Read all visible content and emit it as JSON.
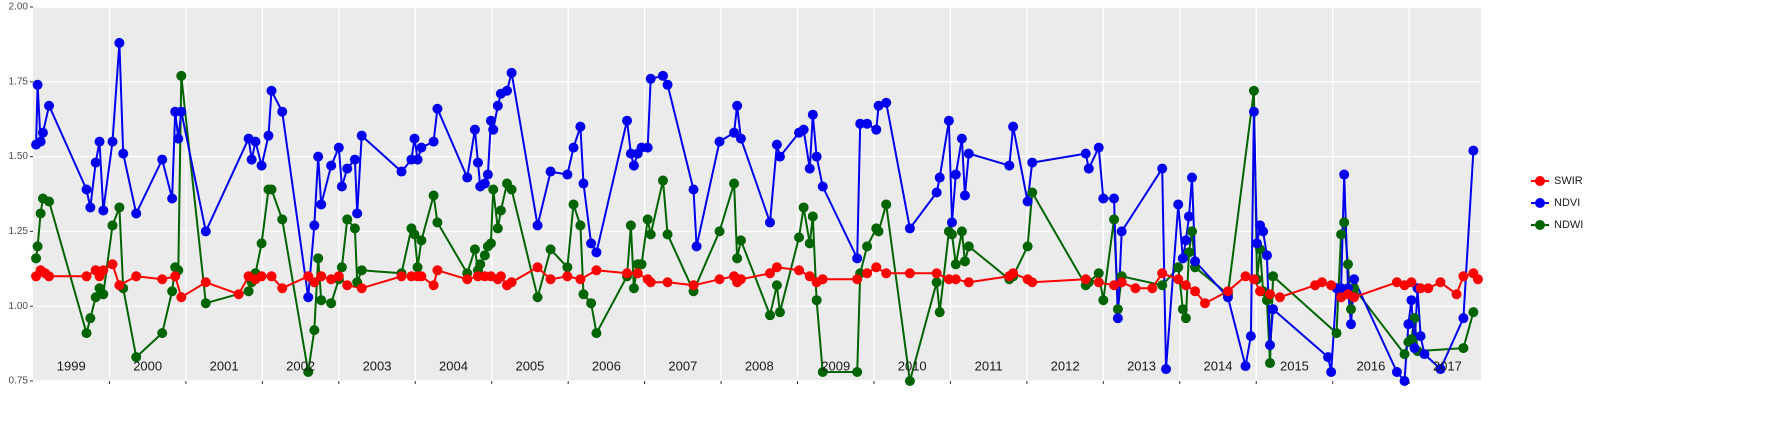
{
  "chart_data": {
    "type": "line",
    "xlim": [
      1999,
      2017.94
    ],
    "ylim": [
      0.75,
      2.0
    ],
    "yticks": [
      0.75,
      {
        "value": 1,
        "label": "1.00"
      },
      1.25,
      {
        "value": 1.5,
        "label": "1.50"
      },
      1.75,
      {
        "value": 2,
        "label": "2.00"
      }
    ],
    "xticks": [
      {
        "value": 1999.5,
        "label": "1999"
      },
      {
        "value": 2000.5,
        "label": "2000"
      },
      {
        "value": 2001.5,
        "label": "2001"
      },
      {
        "value": 2002.5,
        "label": "2002"
      },
      {
        "value": 2003.5,
        "label": "2003"
      },
      {
        "value": 2004.5,
        "label": "2004"
      },
      {
        "value": 2005.5,
        "label": "2005"
      },
      {
        "value": 2006.5,
        "label": "2006"
      },
      {
        "value": 2007.5,
        "label": "2007"
      },
      {
        "value": 2008.5,
        "label": "2008"
      },
      {
        "value": 2009.5,
        "label": "2009"
      },
      {
        "value": 2010.5,
        "label": "2010"
      },
      {
        "value": 2011.5,
        "label": "2011"
      },
      {
        "value": 2012.5,
        "label": "2012"
      },
      {
        "value": 2013.5,
        "label": "2013"
      },
      {
        "value": 2014.5,
        "label": "2014"
      },
      {
        "value": 2015.5,
        "label": "2015"
      },
      {
        "value": 2016.5,
        "label": "2016"
      },
      {
        "value": 2017.5,
        "label": "2017"
      }
    ],
    "xgrid": [
      2000,
      2001,
      2002,
      2003,
      2004,
      2005,
      2006,
      2007,
      2008,
      2009,
      2010,
      2011,
      2012,
      2013,
      2014,
      2015,
      2016,
      2017
    ],
    "grid": true,
    "legend": "right",
    "series": [
      {
        "name": "SWIR",
        "color": "#ff0000",
        "x": [
          1999.04,
          1999.1,
          1999.16,
          1999.21,
          1999.7,
          1999.82,
          1999.87,
          1999.92,
          2000.04,
          2000.13,
          2000.35,
          2000.69,
          2000.86,
          2000.94,
          2001.26,
          2001.69,
          2001.82,
          2001.91,
          2001.99,
          2002.12,
          2002.26,
          2002.6,
          2002.68,
          2002.77,
          2002.9,
          2003.0,
          2003.11,
          2003.3,
          2003.82,
          2003.95,
          2004.03,
          2004.08,
          2004.24,
          2004.29,
          2004.68,
          2004.82,
          2004.91,
          2004.99,
          2005.08,
          2005.12,
          2005.2,
          2005.26,
          2005.6,
          2005.77,
          2005.99,
          2006.16,
          2006.37,
          2006.77,
          2006.91,
          2007.04,
          2007.08,
          2007.3,
          2007.64,
          2007.98,
          2008.17,
          2008.21,
          2008.26,
          2008.64,
          2008.73,
          2009.02,
          2009.16,
          2009.25,
          2009.33,
          2009.78,
          2009.91,
          2010.03,
          2010.16,
          2010.47,
          2010.82,
          2010.98,
          2011.07,
          2011.24,
          2011.77,
          2011.82,
          2012.01,
          2012.07,
          2012.77,
          2012.94,
          2013.14,
          2013.24,
          2013.42,
          2013.64,
          2013.77,
          2013.98,
          2014.08,
          2014.2,
          2014.33,
          2014.63,
          2014.86,
          2014.97,
          2015.05,
          2015.18,
          2015.31,
          2015.77,
          2015.86,
          2015.98,
          2016.11,
          2016.2,
          2016.28,
          2016.84,
          2016.94,
          2017.03,
          2017.15,
          2017.25,
          2017.41,
          2017.62,
          2017.71,
          2017.84,
          2017.9
        ],
        "values": [
          1.1,
          1.12,
          1.11,
          1.1,
          1.1,
          1.12,
          1.1,
          1.12,
          1.14,
          1.07,
          1.1,
          1.09,
          1.1,
          1.03,
          1.08,
          1.04,
          1.1,
          1.09,
          1.1,
          1.1,
          1.06,
          1.1,
          1.08,
          1.1,
          1.09,
          1.1,
          1.07,
          1.06,
          1.1,
          1.1,
          1.1,
          1.1,
          1.07,
          1.12,
          1.09,
          1.1,
          1.1,
          1.1,
          1.09,
          1.1,
          1.07,
          1.08,
          1.13,
          1.09,
          1.1,
          1.09,
          1.12,
          1.11,
          1.11,
          1.09,
          1.08,
          1.08,
          1.07,
          1.09,
          1.1,
          1.08,
          1.09,
          1.11,
          1.13,
          1.12,
          1.1,
          1.08,
          1.09,
          1.09,
          1.11,
          1.13,
          1.11,
          1.11,
          1.11,
          1.09,
          1.09,
          1.08,
          1.1,
          1.11,
          1.09,
          1.08,
          1.09,
          1.08,
          1.07,
          1.08,
          1.06,
          1.06,
          1.11,
          1.09,
          1.07,
          1.05,
          1.01,
          1.05,
          1.1,
          1.09,
          1.05,
          1.04,
          1.03,
          1.07,
          1.08,
          1.07,
          1.03,
          1.04,
          1.03,
          1.08,
          1.07,
          1.08,
          1.06,
          1.06,
          1.08,
          1.04,
          1.1,
          1.11,
          1.09
        ]
      },
      {
        "name": "NDVI",
        "color": "#0000ee",
        "x": [
          1999.04,
          1999.06,
          1999.1,
          1999.13,
          1999.21,
          1999.7,
          1999.75,
          1999.82,
          1999.87,
          1999.92,
          2000.04,
          2000.13,
          2000.18,
          2000.35,
          2000.69,
          2000.82,
          2000.86,
          2000.9,
          2000.94,
          2001.26,
          2001.82,
          2001.86,
          2001.91,
          2001.99,
          2002.08,
          2002.12,
          2002.26,
          2002.6,
          2002.68,
          2002.73,
          2002.77,
          2002.9,
          2003.0,
          2003.04,
          2003.11,
          2003.21,
          2003.24,
          2003.3,
          2003.82,
          2003.95,
          2003.99,
          2004.03,
          2004.08,
          2004.24,
          2004.29,
          2004.68,
          2004.78,
          2004.82,
          2004.85,
          2004.91,
          2004.95,
          2004.99,
          2005.02,
          2005.08,
          2005.12,
          2005.2,
          2005.26,
          2005.6,
          2005.77,
          2005.99,
          2006.07,
          2006.16,
          2006.2,
          2006.3,
          2006.37,
          2006.77,
          2006.82,
          2006.86,
          2006.91,
          2006.96,
          2007.04,
          2007.08,
          2007.24,
          2007.3,
          2007.64,
          2007.68,
          2007.98,
          2008.17,
          2008.21,
          2008.26,
          2008.64,
          2008.73,
          2008.77,
          2009.02,
          2009.08,
          2009.16,
          2009.2,
          2009.25,
          2009.33,
          2009.78,
          2009.82,
          2009.91,
          2010.03,
          2010.06,
          2010.16,
          2010.47,
          2010.82,
          2010.86,
          2010.98,
          2011.02,
          2011.07,
          2011.15,
          2011.19,
          2011.24,
          2011.77,
          2011.82,
          2012.01,
          2012.07,
          2012.77,
          2012.81,
          2012.94,
          2013.0,
          2013.14,
          2013.19,
          2013.24,
          2013.77,
          2013.82,
          2013.98,
          2014.04,
          2014.08,
          2014.12,
          2014.16,
          2014.2,
          2014.63,
          2014.86,
          2014.93,
          2014.97,
          2015.01,
          2015.05,
          2015.09,
          2015.14,
          2015.18,
          2015.22,
          2015.94,
          2015.98,
          2016.05,
          2016.11,
          2016.15,
          2016.2,
          2016.24,
          2016.28,
          2016.84,
          2016.94,
          2016.99,
          2017.03,
          2017.07,
          2017.11,
          2017.15,
          2017.2,
          2017.41,
          2017.71,
          2017.84
        ],
        "values": [
          1.54,
          1.74,
          1.55,
          1.58,
          1.67,
          1.39,
          1.33,
          1.48,
          1.55,
          1.32,
          1.55,
          1.88,
          1.51,
          1.31,
          1.49,
          1.36,
          1.65,
          1.56,
          1.65,
          1.25,
          1.56,
          1.49,
          1.55,
          1.47,
          1.57,
          1.72,
          1.65,
          1.03,
          1.27,
          1.5,
          1.34,
          1.47,
          1.53,
          1.4,
          1.46,
          1.49,
          1.31,
          1.57,
          1.45,
          1.49,
          1.56,
          1.49,
          1.53,
          1.55,
          1.66,
          1.43,
          1.59,
          1.48,
          1.4,
          1.41,
          1.44,
          1.62,
          1.59,
          1.67,
          1.71,
          1.72,
          1.78,
          1.27,
          1.45,
          1.44,
          1.53,
          1.6,
          1.41,
          1.21,
          1.18,
          1.62,
          1.51,
          1.47,
          1.51,
          1.53,
          1.53,
          1.76,
          1.77,
          1.74,
          1.39,
          1.2,
          1.55,
          1.58,
          1.67,
          1.56,
          1.28,
          1.54,
          1.5,
          1.58,
          1.59,
          1.46,
          1.64,
          1.5,
          1.4,
          1.16,
          1.61,
          1.61,
          1.59,
          1.67,
          1.68,
          1.26,
          1.38,
          1.43,
          1.62,
          1.28,
          1.44,
          1.56,
          1.37,
          1.51,
          1.47,
          1.6,
          1.35,
          1.48,
          1.51,
          1.46,
          1.53,
          1.36,
          1.36,
          0.96,
          1.25,
          1.46,
          0.79,
          1.34,
          1.16,
          1.22,
          1.3,
          1.43,
          1.15,
          1.03,
          0.8,
          0.9,
          1.65,
          1.21,
          1.27,
          1.25,
          1.17,
          0.87,
          0.99,
          0.83,
          0.78,
          1.06,
          1.06,
          1.44,
          1.06,
          0.94,
          1.09,
          0.78,
          0.75,
          0.94,
          1.02,
          0.86,
          1.06,
          0.9,
          0.84,
          0.79,
          0.96,
          1.52
        ]
      },
      {
        "name": "NDWI",
        "color": "#006400",
        "x": [
          1999.04,
          1999.06,
          1999.1,
          1999.13,
          1999.21,
          1999.7,
          1999.75,
          1999.82,
          1999.87,
          1999.92,
          2000.04,
          2000.13,
          2000.18,
          2000.35,
          2000.69,
          2000.82,
          2000.86,
          2000.9,
          2000.94,
          2001.26,
          2001.82,
          2001.86,
          2001.91,
          2001.99,
          2002.08,
          2002.12,
          2002.26,
          2002.6,
          2002.68,
          2002.73,
          2002.77,
          2002.9,
          2003.0,
          2003.04,
          2003.11,
          2003.21,
          2003.24,
          2003.3,
          2003.82,
          2003.95,
          2003.99,
          2004.03,
          2004.08,
          2004.24,
          2004.29,
          2004.68,
          2004.78,
          2004.82,
          2004.85,
          2004.91,
          2004.95,
          2004.99,
          2005.02,
          2005.08,
          2005.12,
          2005.2,
          2005.26,
          2005.6,
          2005.77,
          2005.99,
          2006.07,
          2006.16,
          2006.2,
          2006.3,
          2006.37,
          2006.77,
          2006.82,
          2006.86,
          2006.91,
          2006.96,
          2007.04,
          2007.08,
          2007.24,
          2007.3,
          2007.64,
          2007.98,
          2008.17,
          2008.21,
          2008.26,
          2008.64,
          2008.73,
          2008.77,
          2009.02,
          2009.08,
          2009.16,
          2009.2,
          2009.25,
          2009.33,
          2009.78,
          2009.82,
          2009.91,
          2010.03,
          2010.06,
          2010.16,
          2010.47,
          2010.82,
          2010.86,
          2010.98,
          2011.02,
          2011.07,
          2011.15,
          2011.19,
          2011.24,
          2011.77,
          2011.82,
          2012.01,
          2012.07,
          2012.77,
          2012.81,
          2012.94,
          2013.0,
          2013.14,
          2013.19,
          2013.24,
          2013.77,
          2013.98,
          2014.04,
          2014.08,
          2014.12,
          2014.16,
          2014.2,
          2014.63,
          2014.97,
          2015.01,
          2015.05,
          2015.09,
          2015.14,
          2015.18,
          2015.22,
          2016.05,
          2016.11,
          2016.15,
          2016.2,
          2016.24,
          2016.28,
          2016.94,
          2016.99,
          2017.03,
          2017.07,
          2017.11,
          2017.71,
          2017.84
        ],
        "values": [
          1.16,
          1.2,
          1.31,
          1.36,
          1.35,
          0.91,
          0.96,
          1.03,
          1.06,
          1.04,
          1.27,
          1.33,
          1.06,
          0.83,
          0.91,
          1.05,
          1.13,
          1.12,
          1.77,
          1.01,
          1.05,
          1.08,
          1.11,
          1.21,
          1.39,
          1.39,
          1.29,
          0.78,
          0.92,
          1.16,
          1.02,
          1.01,
          1.09,
          1.13,
          1.29,
          1.26,
          1.08,
          1.12,
          1.11,
          1.26,
          1.24,
          1.13,
          1.22,
          1.37,
          1.28,
          1.11,
          1.19,
          1.12,
          1.14,
          1.17,
          1.2,
          1.21,
          1.39,
          1.26,
          1.32,
          1.41,
          1.39,
          1.03,
          1.19,
          1.13,
          1.34,
          1.27,
          1.04,
          1.01,
          0.91,
          1.1,
          1.27,
          1.06,
          1.14,
          1.14,
          1.29,
          1.24,
          1.42,
          1.24,
          1.05,
          1.25,
          1.41,
          1.16,
          1.22,
          0.97,
          1.07,
          0.98,
          1.23,
          1.33,
          1.21,
          1.3,
          1.02,
          0.78,
          0.78,
          1.11,
          1.2,
          1.26,
          1.25,
          1.34,
          0.75,
          1.08,
          0.98,
          1.25,
          1.24,
          1.14,
          1.25,
          1.15,
          1.2,
          1.09,
          1.1,
          1.2,
          1.38,
          1.07,
          1.08,
          1.11,
          1.02,
          1.29,
          0.99,
          1.1,
          1.07,
          1.13,
          0.99,
          0.96,
          1.18,
          1.25,
          1.13,
          1.04,
          1.72,
          1.09,
          1.19,
          1.05,
          1.02,
          0.81,
          1.1,
          0.91,
          1.24,
          1.28,
          1.14,
          0.99,
          1.06,
          0.84,
          0.88,
          0.89,
          0.96,
          0.85,
          0.86,
          0.98
        ]
      }
    ]
  }
}
